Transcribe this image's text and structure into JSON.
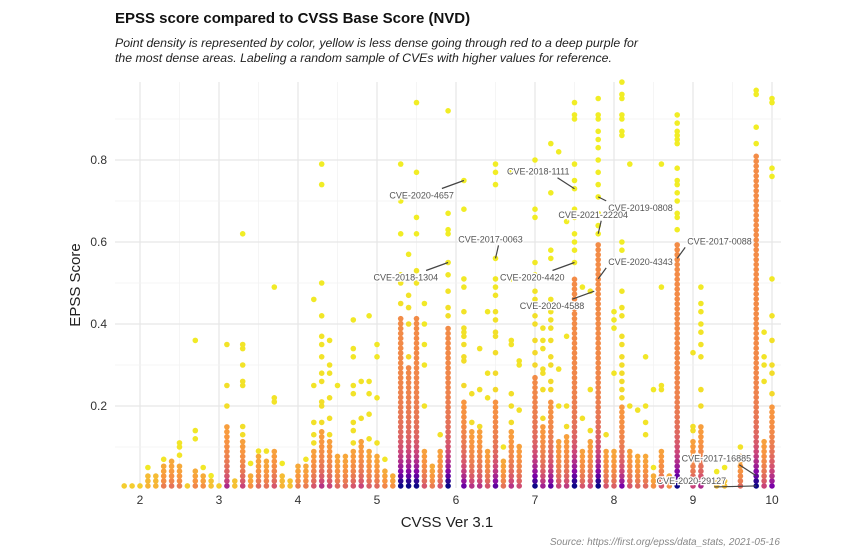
{
  "chart_data": {
    "type": "scatter",
    "title": "EPSS score compared to CVSS Base Score (NVD)",
    "subtitle_lines": [
      "Point density is represented by color, yellow is less dense going through red to a deep purple for",
      "the most dense areas. Labeling a random sample of CVEs with higher values for reference."
    ],
    "xlabel": "CVSS Ver 3.1",
    "ylabel": "EPSS Score",
    "source": "Source: https://first.org/epss/data_stats, 2021-05-16",
    "xlim": [
      1.7,
      10.1
    ],
    "ylim": [
      0,
      0.98
    ],
    "x_ticks": [
      "2",
      "3",
      "4",
      "5",
      "6",
      "7",
      "8",
      "9",
      "10"
    ],
    "y_ticks": [
      "0.2",
      "0.4",
      "0.6",
      "0.8"
    ],
    "grid": true,
    "color_scale": {
      "meaning": "point density",
      "colors": [
        "#0d0887",
        "#7e03a8",
        "#cc4778",
        "#f89540",
        "#f0f921"
      ]
    },
    "columns": [
      {
        "x": 1.8,
        "dense_to": 0.01,
        "points": []
      },
      {
        "x": 1.9,
        "dense_to": 0.01,
        "points": []
      },
      {
        "x": 2.0,
        "dense_to": 0.01,
        "points": []
      },
      {
        "x": 2.1,
        "dense_to": 0.03,
        "points": [
          0.05
        ]
      },
      {
        "x": 2.2,
        "dense_to": 0.03,
        "points": []
      },
      {
        "x": 2.3,
        "dense_to": 0.06,
        "points": [
          0.07
        ]
      },
      {
        "x": 2.4,
        "dense_to": 0.07,
        "points": []
      },
      {
        "x": 2.5,
        "dense_to": 0.06,
        "points": [
          0.08,
          0.1,
          0.11
        ]
      },
      {
        "x": 2.6,
        "dense_to": 0.01,
        "points": []
      },
      {
        "x": 2.7,
        "dense_to": 0.05,
        "points": [
          0.12,
          0.14,
          0.36
        ]
      },
      {
        "x": 2.8,
        "dense_to": 0.04,
        "points": [
          0.05
        ]
      },
      {
        "x": 2.9,
        "dense_to": 0.02,
        "points": [
          0.03
        ]
      },
      {
        "x": 3.0,
        "dense_to": 0.01,
        "points": []
      },
      {
        "x": 3.1,
        "dense_to": 0.15,
        "points": [
          0.2,
          0.25,
          0.35
        ]
      },
      {
        "x": 3.2,
        "dense_to": 0.02,
        "points": []
      },
      {
        "x": 3.3,
        "dense_to": 0.12,
        "points": [
          0.13,
          0.15,
          0.25,
          0.26,
          0.3,
          0.34,
          0.35,
          0.62
        ]
      },
      {
        "x": 3.4,
        "dense_to": 0.04,
        "points": [
          0.06
        ]
      },
      {
        "x": 3.5,
        "dense_to": 0.08,
        "points": [
          0.09
        ]
      },
      {
        "x": 3.6,
        "dense_to": 0.07,
        "points": [
          0.09
        ]
      },
      {
        "x": 3.7,
        "dense_to": 0.1,
        "points": [
          0.21,
          0.22,
          0.49
        ]
      },
      {
        "x": 3.8,
        "dense_to": 0.03,
        "points": [
          0.06
        ]
      },
      {
        "x": 3.9,
        "dense_to": 0.02,
        "points": []
      },
      {
        "x": 4.0,
        "dense_to": 0.06,
        "points": []
      },
      {
        "x": 4.1,
        "dense_to": 0.06,
        "points": [
          0.07
        ]
      },
      {
        "x": 4.2,
        "dense_to": 0.1,
        "points": [
          0.11,
          0.13,
          0.16,
          0.25,
          0.46
        ]
      },
      {
        "x": 4.3,
        "dense_to": 0.14,
        "points": [
          0.16,
          0.2,
          0.21,
          0.26,
          0.28,
          0.32,
          0.35,
          0.37,
          0.42,
          0.5,
          0.74,
          0.79
        ]
      },
      {
        "x": 4.4,
        "dense_to": 0.12,
        "points": [
          0.13,
          0.17,
          0.22,
          0.28,
          0.3,
          0.36
        ]
      },
      {
        "x": 4.5,
        "dense_to": 0.08,
        "points": [
          0.25
        ]
      },
      {
        "x": 4.6,
        "dense_to": 0.08,
        "points": []
      },
      {
        "x": 4.7,
        "dense_to": 0.1,
        "points": [
          0.11,
          0.14,
          0.16,
          0.23,
          0.25,
          0.32,
          0.34,
          0.41
        ]
      },
      {
        "x": 4.8,
        "dense_to": 0.12,
        "points": [
          0.17,
          0.26
        ]
      },
      {
        "x": 4.9,
        "dense_to": 0.09,
        "points": [
          0.12,
          0.18,
          0.23,
          0.26,
          0.42
        ]
      },
      {
        "x": 5.0,
        "dense_to": 0.08,
        "points": [
          0.11,
          0.22,
          0.32,
          0.35
        ]
      },
      {
        "x": 5.1,
        "dense_to": 0.05,
        "points": [
          0.07
        ]
      },
      {
        "x": 5.2,
        "dense_to": 0.04,
        "points": []
      },
      {
        "x": 5.3,
        "dense_to": 0.42,
        "points": [
          0.45,
          0.5,
          0.52,
          0.62,
          0.7,
          0.79
        ]
      },
      {
        "x": 5.4,
        "dense_to": 0.3,
        "points": [
          0.32,
          0.4,
          0.44,
          0.47,
          0.57
        ]
      },
      {
        "x": 5.5,
        "dense_to": 0.42,
        "points": [
          0.5,
          0.53,
          0.62,
          0.66,
          0.77,
          0.94
        ]
      },
      {
        "x": 5.6,
        "dense_to": 0.1,
        "points": [
          0.2,
          0.3,
          0.35,
          0.4,
          0.45
        ]
      },
      {
        "x": 5.7,
        "dense_to": 0.06,
        "points": []
      },
      {
        "x": 5.8,
        "dense_to": 0.1,
        "points": [
          0.13
        ]
      },
      {
        "x": 5.9,
        "dense_to": 0.4,
        "points": [
          0.42,
          0.44,
          0.48,
          0.52,
          0.55,
          0.62,
          0.63,
          0.67,
          0.92
        ]
      },
      {
        "x": 6.1,
        "dense_to": 0.21,
        "points": [
          0.25,
          0.31,
          0.32,
          0.35,
          0.37,
          0.38,
          0.39,
          0.43,
          0.49,
          0.51,
          0.68,
          0.75
        ]
      },
      {
        "x": 6.2,
        "dense_to": 0.14,
        "points": [
          0.16,
          0.23
        ]
      },
      {
        "x": 6.3,
        "dense_to": 0.14,
        "points": [
          0.15,
          0.24,
          0.34
        ]
      },
      {
        "x": 6.4,
        "dense_to": 0.1,
        "points": [
          0.22,
          0.28,
          0.43
        ]
      },
      {
        "x": 6.5,
        "dense_to": 0.22,
        "points": [
          0.24,
          0.28,
          0.33,
          0.37,
          0.38,
          0.41,
          0.43,
          0.47,
          0.49,
          0.51,
          0.56,
          0.74,
          0.77,
          0.79
        ]
      },
      {
        "x": 6.6,
        "dense_to": 0.07,
        "points": [
          0.1
        ]
      },
      {
        "x": 6.7,
        "dense_to": 0.14,
        "points": [
          0.16,
          0.2,
          0.23,
          0.35,
          0.36,
          0.51,
          0.77
        ]
      },
      {
        "x": 6.8,
        "dense_to": 0.11,
        "points": [
          0.19,
          0.3,
          0.31
        ]
      },
      {
        "x": 7.0,
        "dense_to": 0.28,
        "points": [
          0.3,
          0.33,
          0.36,
          0.4,
          0.42,
          0.46,
          0.48,
          0.52,
          0.55,
          0.66,
          0.68,
          0.8
        ]
      },
      {
        "x": 7.1,
        "dense_to": 0.16,
        "points": [
          0.17,
          0.24,
          0.28,
          0.29,
          0.34,
          0.36,
          0.39
        ]
      },
      {
        "x": 7.2,
        "dense_to": 0.22,
        "points": [
          0.24,
          0.26,
          0.3,
          0.32,
          0.36,
          0.39,
          0.41,
          0.43,
          0.46,
          0.56,
          0.58,
          0.72,
          0.84
        ]
      },
      {
        "x": 7.3,
        "dense_to": 0.12,
        "points": [
          0.2,
          0.29,
          0.82
        ]
      },
      {
        "x": 7.4,
        "dense_to": 0.13,
        "points": [
          0.15,
          0.2,
          0.37,
          0.65
        ]
      },
      {
        "x": 7.5,
        "dense_to": 0.52,
        "points": [
          0.55,
          0.58,
          0.6,
          0.62,
          0.66,
          0.68,
          0.73,
          0.75,
          0.79,
          0.9,
          0.91,
          0.94
        ]
      },
      {
        "x": 7.6,
        "dense_to": 0.1,
        "points": [
          0.17,
          0.49
        ]
      },
      {
        "x": 7.7,
        "dense_to": 0.12,
        "points": [
          0.14,
          0.24,
          0.48
        ]
      },
      {
        "x": 7.8,
        "dense_to": 0.6,
        "points": [
          0.62,
          0.64,
          0.67,
          0.71,
          0.74,
          0.77,
          0.8,
          0.83,
          0.85,
          0.87,
          0.9,
          0.91,
          0.95
        ]
      },
      {
        "x": 7.9,
        "dense_to": 0.1,
        "points": [
          0.13
        ]
      },
      {
        "x": 8.0,
        "dense_to": 0.09,
        "points": [
          0.28,
          0.39,
          0.41,
          0.43
        ]
      },
      {
        "x": 8.1,
        "dense_to": 0.2,
        "points": [
          0.22,
          0.24,
          0.26,
          0.28,
          0.3,
          0.32,
          0.35,
          0.37,
          0.42,
          0.44,
          0.48,
          0.58,
          0.6,
          0.86,
          0.87,
          0.9,
          0.91,
          0.95,
          0.96,
          0.99
        ]
      },
      {
        "x": 8.2,
        "dense_to": 0.1,
        "points": [
          0.2,
          0.79
        ]
      },
      {
        "x": 8.3,
        "dense_to": 0.08,
        "points": [
          0.19
        ]
      },
      {
        "x": 8.4,
        "dense_to": 0.08,
        "points": [
          0.13,
          0.16,
          0.2,
          0.32
        ]
      },
      {
        "x": 8.5,
        "dense_to": 0.04,
        "points": [
          0.05,
          0.24
        ]
      },
      {
        "x": 8.6,
        "dense_to": 0.1,
        "points": [
          0.24,
          0.25,
          0.49,
          0.79
        ]
      },
      {
        "x": 8.7,
        "dense_to": 0.04,
        "points": []
      },
      {
        "x": 8.8,
        "dense_to": 0.6,
        "points": [
          0.63,
          0.66,
          0.67,
          0.7,
          0.72,
          0.74,
          0.75,
          0.78,
          0.84,
          0.85,
          0.86,
          0.87,
          0.89,
          0.91
        ]
      },
      {
        "x": 9.0,
        "dense_to": 0.12,
        "points": [
          0.14,
          0.15,
          0.33
        ]
      },
      {
        "x": 9.1,
        "dense_to": 0.15,
        "points": [
          0.2,
          0.24,
          0.32,
          0.35,
          0.38,
          0.4,
          0.43,
          0.45,
          0.49
        ]
      },
      {
        "x": 9.3,
        "dense_to": 0.02,
        "points": [
          0.04
        ]
      },
      {
        "x": 9.4,
        "dense_to": 0.02,
        "points": [
          0.05
        ]
      },
      {
        "x": 9.6,
        "dense_to": 0.08,
        "points": [
          0.1
        ]
      },
      {
        "x": 9.8,
        "dense_to": 0.82,
        "points": [
          0.84,
          0.88,
          0.96,
          0.97
        ]
      },
      {
        "x": 9.9,
        "dense_to": 0.12,
        "points": [
          0.26,
          0.3,
          0.32,
          0.38
        ]
      },
      {
        "x": 10.0,
        "dense_to": 0.2,
        "points": [
          0.23,
          0.28,
          0.3,
          0.36,
          0.42,
          0.51,
          0.76,
          0.78,
          0.94,
          0.95
        ]
      }
    ],
    "annotations": [
      {
        "label": "CVE-2020-4657",
        "x": 6.1,
        "y": 0.75,
        "side": "below-left"
      },
      {
        "label": "CVE-2018-1111",
        "x": 7.5,
        "y": 0.73,
        "side": "above-left"
      },
      {
        "label": "CVE-2019-0808",
        "x": 7.8,
        "y": 0.71,
        "side": "below-right"
      },
      {
        "label": "CVE-2021-22204",
        "x": 7.8,
        "y": 0.62,
        "side": "above"
      },
      {
        "label": "CVE-2017-0063",
        "x": 6.5,
        "y": 0.56,
        "side": "above"
      },
      {
        "label": "CVE-2018-1304",
        "x": 5.9,
        "y": 0.55,
        "side": "below-left"
      },
      {
        "label": "CVE-2020-4420",
        "x": 7.5,
        "y": 0.55,
        "side": "below-left"
      },
      {
        "label": "CVE-2020-4343",
        "x": 7.8,
        "y": 0.51,
        "side": "above-right"
      },
      {
        "label": "CVE-2020-4588",
        "x": 7.75,
        "y": 0.48,
        "side": "below-left"
      },
      {
        "label": "CVE-2017-0088",
        "x": 8.8,
        "y": 0.56,
        "side": "above-right"
      },
      {
        "label": "CVE-2017-16885",
        "x": 9.8,
        "y": 0.03,
        "side": "above-left"
      },
      {
        "label": "CVE-2020-29127",
        "x": 9.8,
        "y": 0.005,
        "side": "left"
      }
    ]
  }
}
